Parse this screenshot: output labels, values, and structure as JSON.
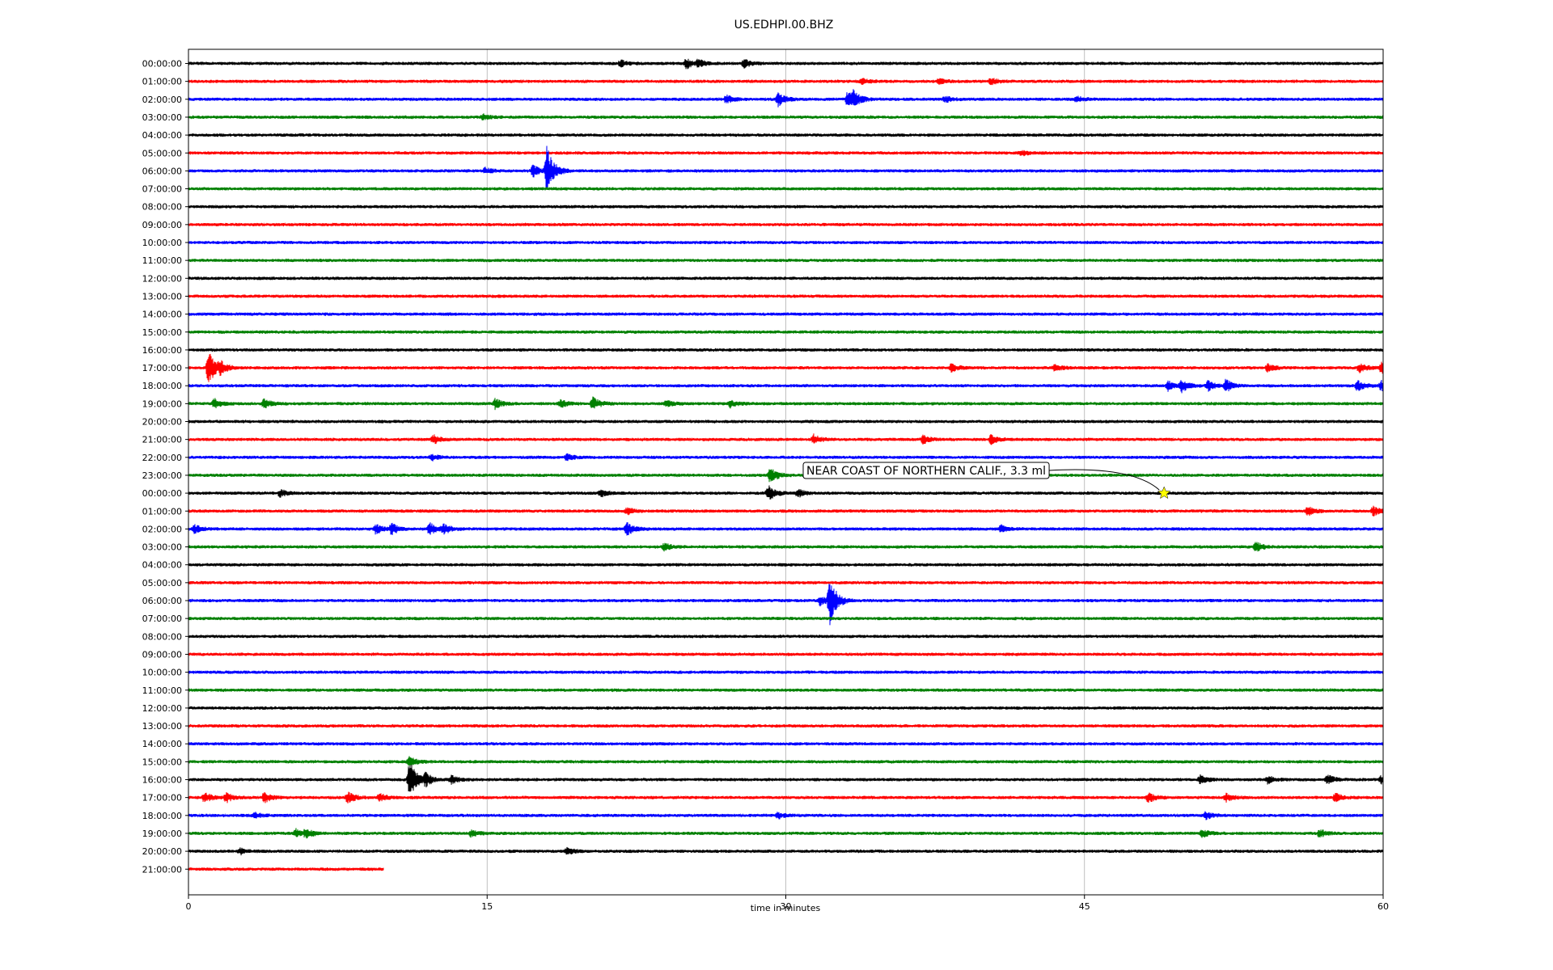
{
  "chart_data": {
    "type": "line",
    "title": "US.EDHPI.00.BHZ",
    "xlabel": "time in minutes",
    "ylabel": "",
    "xlim": [
      0,
      60
    ],
    "x_ticks": [
      "0",
      "15",
      "30",
      "45",
      "60"
    ],
    "grid": "vertical",
    "trace_colors": [
      "#000000",
      "#ff0000",
      "#0000ff",
      "#008000"
    ],
    "rows": [
      {
        "label": "00:00:00",
        "events": [
          [
            21.7,
            0.3
          ],
          [
            25.0,
            0.5
          ],
          [
            25.6,
            0.35
          ],
          [
            27.9,
            0.45
          ]
        ]
      },
      {
        "label": "01:00:00",
        "events": [
          [
            33.8,
            0.3
          ],
          [
            37.7,
            0.25
          ],
          [
            40.3,
            0.3
          ]
        ]
      },
      {
        "label": "02:00:00",
        "events": [
          [
            27.0,
            0.4
          ],
          [
            29.6,
            0.7
          ],
          [
            33.1,
            0.8
          ],
          [
            33.4,
            0.6
          ],
          [
            38.0,
            0.3
          ],
          [
            44.6,
            0.3
          ]
        ]
      },
      {
        "label": "03:00:00",
        "events": [
          [
            14.8,
            0.25
          ]
        ]
      },
      {
        "label": "04:00:00",
        "events": []
      },
      {
        "label": "05:00:00",
        "events": [
          [
            41.8,
            0.3
          ]
        ]
      },
      {
        "label": "06:00:00",
        "events": [
          [
            14.9,
            0.3
          ],
          [
            17.3,
            0.6
          ],
          [
            18.0,
            2.4
          ]
        ]
      },
      {
        "label": "07:00:00",
        "events": []
      },
      {
        "label": "08:00:00",
        "events": []
      },
      {
        "label": "09:00:00",
        "events": []
      },
      {
        "label": "10:00:00",
        "events": []
      },
      {
        "label": "11:00:00",
        "events": []
      },
      {
        "label": "12:00:00",
        "events": []
      },
      {
        "label": "13:00:00",
        "events": []
      },
      {
        "label": "14:00:00",
        "events": []
      },
      {
        "label": "15:00:00",
        "events": []
      },
      {
        "label": "16:00:00",
        "events": []
      },
      {
        "label": "17:00:00",
        "events": [
          [
            1.0,
            1.8
          ],
          [
            1.6,
            0.5
          ],
          [
            38.3,
            0.45
          ],
          [
            43.5,
            0.35
          ],
          [
            54.2,
            0.35
          ],
          [
            58.8,
            0.5
          ],
          [
            59.9,
            0.5
          ]
        ]
      },
      {
        "label": "18:00:00",
        "events": [
          [
            49.2,
            0.5
          ],
          [
            49.9,
            0.6
          ],
          [
            51.2,
            0.5
          ],
          [
            52.1,
            0.6
          ],
          [
            58.7,
            0.5
          ],
          [
            59.9,
            0.5
          ]
        ]
      },
      {
        "label": "19:00:00",
        "events": [
          [
            1.3,
            0.5
          ],
          [
            3.8,
            0.45
          ],
          [
            15.4,
            0.5
          ],
          [
            18.7,
            0.35
          ],
          [
            20.3,
            0.7
          ],
          [
            24.0,
            0.3
          ],
          [
            27.2,
            0.35
          ]
        ]
      },
      {
        "label": "20:00:00",
        "events": []
      },
      {
        "label": "21:00:00",
        "events": [
          [
            12.3,
            0.45
          ],
          [
            31.4,
            0.45
          ],
          [
            36.9,
            0.4
          ],
          [
            40.3,
            0.45
          ]
        ]
      },
      {
        "label": "22:00:00",
        "events": [
          [
            12.2,
            0.3
          ],
          [
            19.0,
            0.3
          ]
        ]
      },
      {
        "label": "23:00:00",
        "events": [
          [
            29.2,
            0.8
          ]
        ]
      },
      {
        "label": "00:00:00",
        "events": [
          [
            4.6,
            0.35
          ],
          [
            20.7,
            0.35
          ],
          [
            29.1,
            0.8
          ],
          [
            30.6,
            0.4
          ]
        ]
      },
      {
        "label": "01:00:00",
        "events": [
          [
            22.0,
            0.35
          ],
          [
            56.2,
            0.45
          ],
          [
            59.5,
            0.45
          ]
        ]
      },
      {
        "label": "02:00:00",
        "events": [
          [
            0.3,
            0.4
          ],
          [
            9.4,
            0.5
          ],
          [
            10.2,
            0.55
          ],
          [
            12.1,
            0.6
          ],
          [
            12.8,
            0.5
          ],
          [
            22.0,
            0.7
          ],
          [
            40.8,
            0.35
          ]
        ]
      },
      {
        "label": "03:00:00",
        "events": [
          [
            23.9,
            0.35
          ],
          [
            53.6,
            0.5
          ]
        ]
      },
      {
        "label": "04:00:00",
        "events": []
      },
      {
        "label": "05:00:00",
        "events": []
      },
      {
        "label": "06:00:00",
        "events": [
          [
            31.7,
            0.5
          ],
          [
            32.2,
            2.5
          ]
        ]
      },
      {
        "label": "07:00:00",
        "events": []
      },
      {
        "label": "08:00:00",
        "events": []
      },
      {
        "label": "09:00:00",
        "events": []
      },
      {
        "label": "10:00:00",
        "events": []
      },
      {
        "label": "11:00:00",
        "events": []
      },
      {
        "label": "12:00:00",
        "events": []
      },
      {
        "label": "13:00:00",
        "events": []
      },
      {
        "label": "14:00:00",
        "events": []
      },
      {
        "label": "15:00:00",
        "events": [
          [
            11.1,
            0.5
          ]
        ]
      },
      {
        "label": "16:00:00",
        "events": [
          [
            11.1,
            2.0
          ],
          [
            11.9,
            0.6
          ],
          [
            13.2,
            0.4
          ],
          [
            50.8,
            0.4
          ],
          [
            54.2,
            0.4
          ],
          [
            57.2,
            0.45
          ],
          [
            59.9,
            0.4
          ]
        ]
      },
      {
        "label": "17:00:00",
        "events": [
          [
            0.8,
            0.5
          ],
          [
            1.9,
            0.45
          ],
          [
            3.8,
            0.5
          ],
          [
            8.0,
            0.6
          ],
          [
            9.6,
            0.4
          ],
          [
            48.2,
            0.5
          ],
          [
            52.1,
            0.4
          ],
          [
            57.6,
            0.4
          ]
        ]
      },
      {
        "label": "18:00:00",
        "events": [
          [
            3.3,
            0.3
          ],
          [
            29.6,
            0.3
          ],
          [
            51.1,
            0.35
          ]
        ]
      },
      {
        "label": "19:00:00",
        "events": [
          [
            5.4,
            0.45
          ],
          [
            5.9,
            0.45
          ],
          [
            14.2,
            0.35
          ],
          [
            50.9,
            0.4
          ],
          [
            56.8,
            0.4
          ]
        ]
      },
      {
        "label": "20:00:00",
        "events": [
          [
            2.6,
            0.3
          ],
          [
            19.0,
            0.35
          ]
        ]
      },
      {
        "label": "21:00:00",
        "events": [],
        "end": 9.8
      }
    ],
    "annotation": {
      "text": "NEAR COAST OF NORTHERN CALIF., 3.3 ml",
      "row_index": 24,
      "x": 49.0,
      "marker_color": "#ffff00"
    }
  }
}
